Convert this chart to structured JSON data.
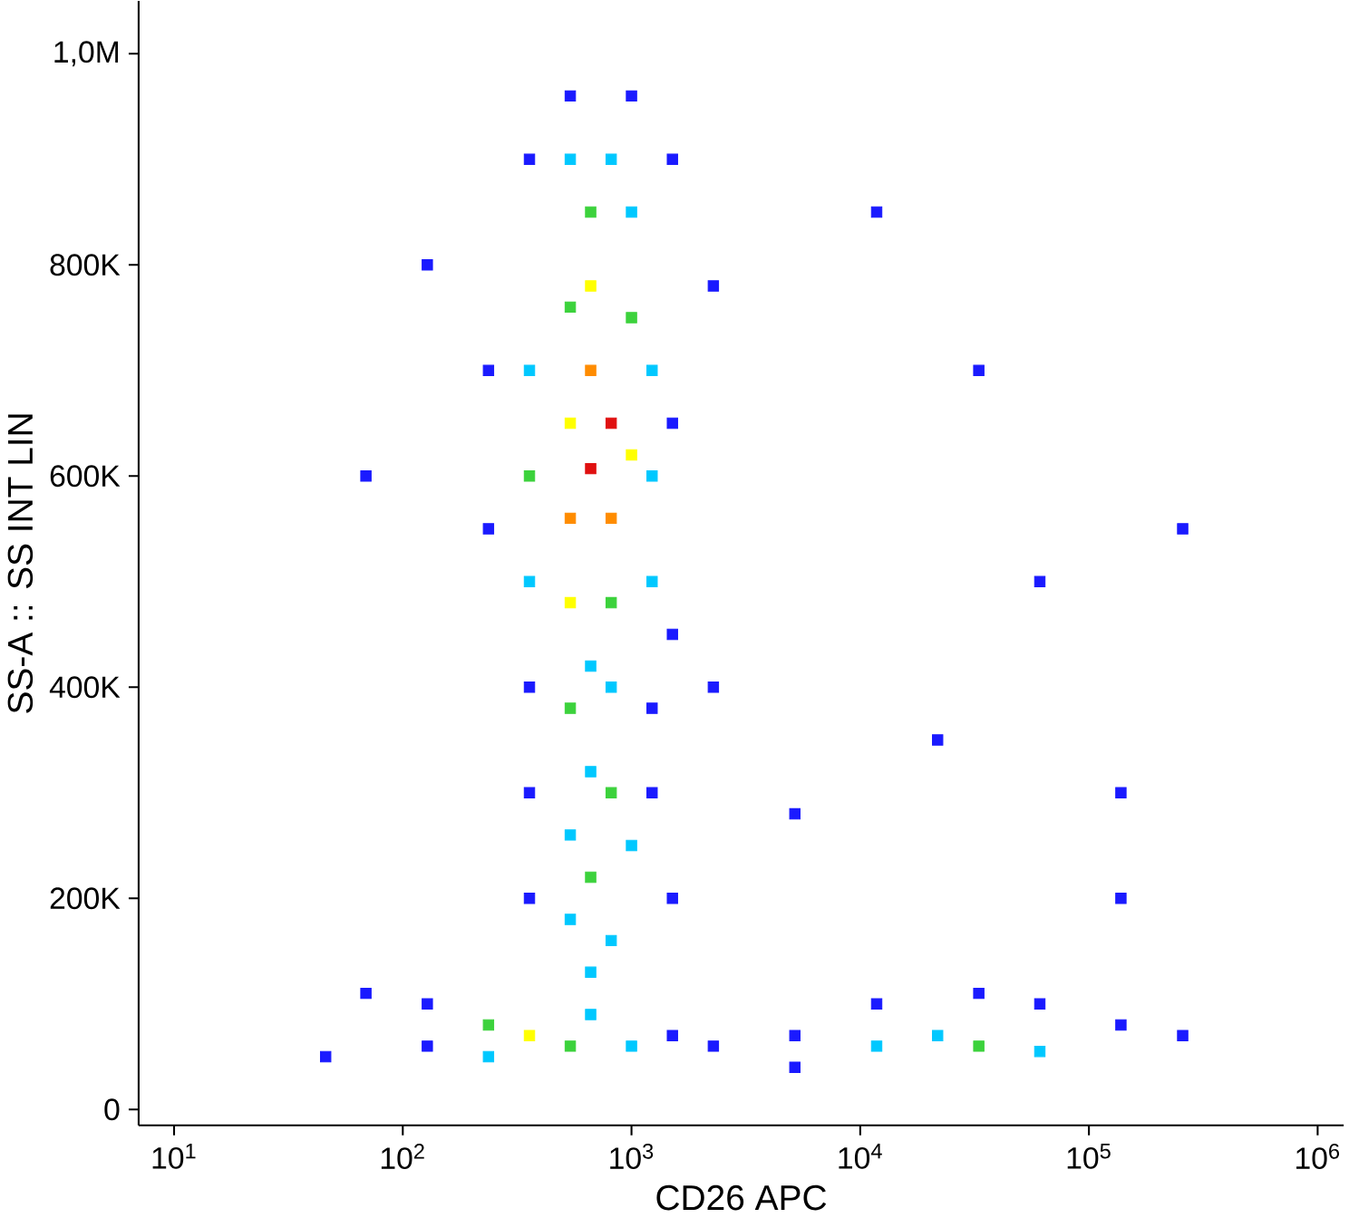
{
  "chart_data": {
    "type": "scatter",
    "xlabel": "CD26 APC",
    "ylabel": "SS-A :: SS INT LIN",
    "log": "x",
    "marker": "square",
    "grid": false,
    "xlim": [
      7,
      1300000
    ],
    "ylim": [
      -15000,
      1050000
    ],
    "xticks": [
      {
        "value": 10,
        "label": "10$^{1}$"
      },
      {
        "value": 100,
        "label": "10$^{2}$"
      },
      {
        "value": 1000,
        "label": "10$^{3}$"
      },
      {
        "value": 10000,
        "label": "10$^{4}$"
      },
      {
        "value": 100000,
        "label": "10$^{5}$"
      },
      {
        "value": 1000000,
        "label": "10$^{6}$"
      }
    ],
    "yticks": [
      0,
      {
        "value": 200000,
        "label": "200K"
      },
      {
        "value": 400000,
        "label": "400K"
      },
      {
        "value": 600000,
        "label": "600K"
      },
      {
        "value": 800000,
        "label": "800K"
      },
      {
        "value": 1000000,
        "label": "1,0M"
      }
    ],
    "x": [
      663,
      815,
      540,
      663,
      815,
      540,
      1000,
      663,
      540,
      815,
      663,
      540,
      1000,
      358,
      1230,
      815,
      540,
      1000,
      358,
      1230,
      663,
      815,
      540,
      358,
      1230,
      1000,
      540,
      358,
      1510,
      237,
      1510,
      237,
      1510,
      358,
      1230,
      663,
      815,
      540,
      1000,
      663,
      358,
      1230,
      540,
      815,
      358,
      1510,
      663,
      358,
      540,
      237,
      237,
      128,
      128,
      663,
      1000,
      1510,
      2280,
      5180,
      69,
      46,
      33000,
      21800,
      61000,
      11800,
      11800,
      61000,
      138000,
      257000,
      33000,
      5180,
      69,
      128,
      33000,
      61000,
      21800,
      138000,
      5180,
      11800,
      257000,
      138000,
      2280,
      2280
    ],
    "values": [
      607000,
      650000,
      560000,
      700000,
      560000,
      650000,
      620000,
      780000,
      480000,
      480000,
      850000,
      760000,
      750000,
      600000,
      600000,
      900000,
      900000,
      850000,
      700000,
      700000,
      420000,
      400000,
      380000,
      500000,
      500000,
      960000,
      960000,
      900000,
      900000,
      700000,
      650000,
      550000,
      450000,
      400000,
      380000,
      320000,
      300000,
      260000,
      250000,
      220000,
      300000,
      300000,
      180000,
      160000,
      200000,
      200000,
      130000,
      70000,
      60000,
      80000,
      50000,
      60000,
      100000,
      90000,
      60000,
      70000,
      60000,
      70000,
      110000,
      50000,
      60000,
      70000,
      55000,
      60000,
      100000,
      100000,
      80000,
      70000,
      110000,
      40000,
      600000,
      800000,
      700000,
      500000,
      350000,
      300000,
      280000,
      850000,
      550000,
      200000,
      780000,
      400000
    ],
    "colors": [
      "#e01010",
      "#e01010",
      "#ff8c00",
      "#ff8c00",
      "#ff8c00",
      "#ffff00",
      "#ffff00",
      "#ffff00",
      "#ffff00",
      "#3cd23c",
      "#3cd23c",
      "#3cd23c",
      "#3cd23c",
      "#3cd23c",
      "#00c8ff",
      "#00c8ff",
      "#00c8ff",
      "#00c8ff",
      "#00c8ff",
      "#00c8ff",
      "#00c8ff",
      "#00c8ff",
      "#3cd23c",
      "#00c8ff",
      "#00c8ff",
      "#1a1aff",
      "#1a1aff",
      "#1a1aff",
      "#1a1aff",
      "#1a1aff",
      "#1a1aff",
      "#1a1aff",
      "#1a1aff",
      "#1a1aff",
      "#1a1aff",
      "#00c8ff",
      "#3cd23c",
      "#00c8ff",
      "#00c8ff",
      "#3cd23c",
      "#1a1aff",
      "#1a1aff",
      "#00c8ff",
      "#00c8ff",
      "#1a1aff",
      "#1a1aff",
      "#00c8ff",
      "#ffff00",
      "#3cd23c",
      "#3cd23c",
      "#00c8ff",
      "#1a1aff",
      "#1a1aff",
      "#00c8ff",
      "#00c8ff",
      "#1a1aff",
      "#1a1aff",
      "#1a1aff",
      "#1a1aff",
      "#1a1aff",
      "#3cd23c",
      "#00c8ff",
      "#00c8ff",
      "#00c8ff",
      "#1a1aff",
      "#1a1aff",
      "#1a1aff",
      "#1a1aff",
      "#1a1aff",
      "#1a1aff",
      "#1a1aff",
      "#1a1aff",
      "#1a1aff",
      "#1a1aff",
      "#1a1aff",
      "#1a1aff",
      "#1a1aff",
      "#1a1aff",
      "#1a1aff",
      "#1a1aff",
      "#1a1aff",
      "#1a1aff"
    ]
  }
}
